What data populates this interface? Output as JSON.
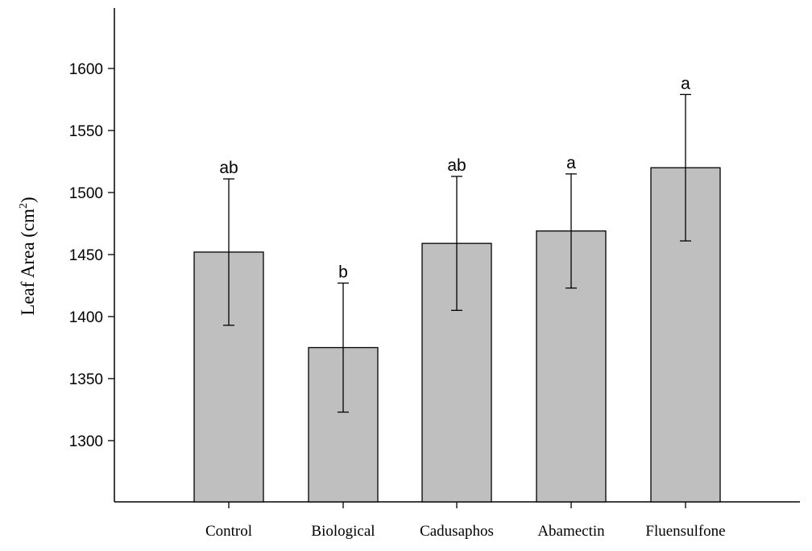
{
  "chart_data": {
    "type": "bar",
    "categories": [
      "Control",
      "Biological",
      "Cadusaphos",
      "Abamectin",
      "Fluensulfone"
    ],
    "values": [
      1452,
      1375,
      1459,
      1469,
      1520
    ],
    "error": [
      59,
      52,
      54,
      46,
      59
    ],
    "significance": [
      "ab",
      "b",
      "ab",
      "a",
      "a"
    ],
    "ylabel_main": "Leaf Area (cm",
    "ylabel_sup": "2",
    "ylabel_close": ")",
    "xlabel": "",
    "title": "",
    "ylim": [
      1250,
      1650
    ],
    "yticks": [
      1300,
      1350,
      1400,
      1450,
      1500,
      1550,
      1600
    ],
    "grid": false,
    "bar_color": "#bfbfbf"
  }
}
